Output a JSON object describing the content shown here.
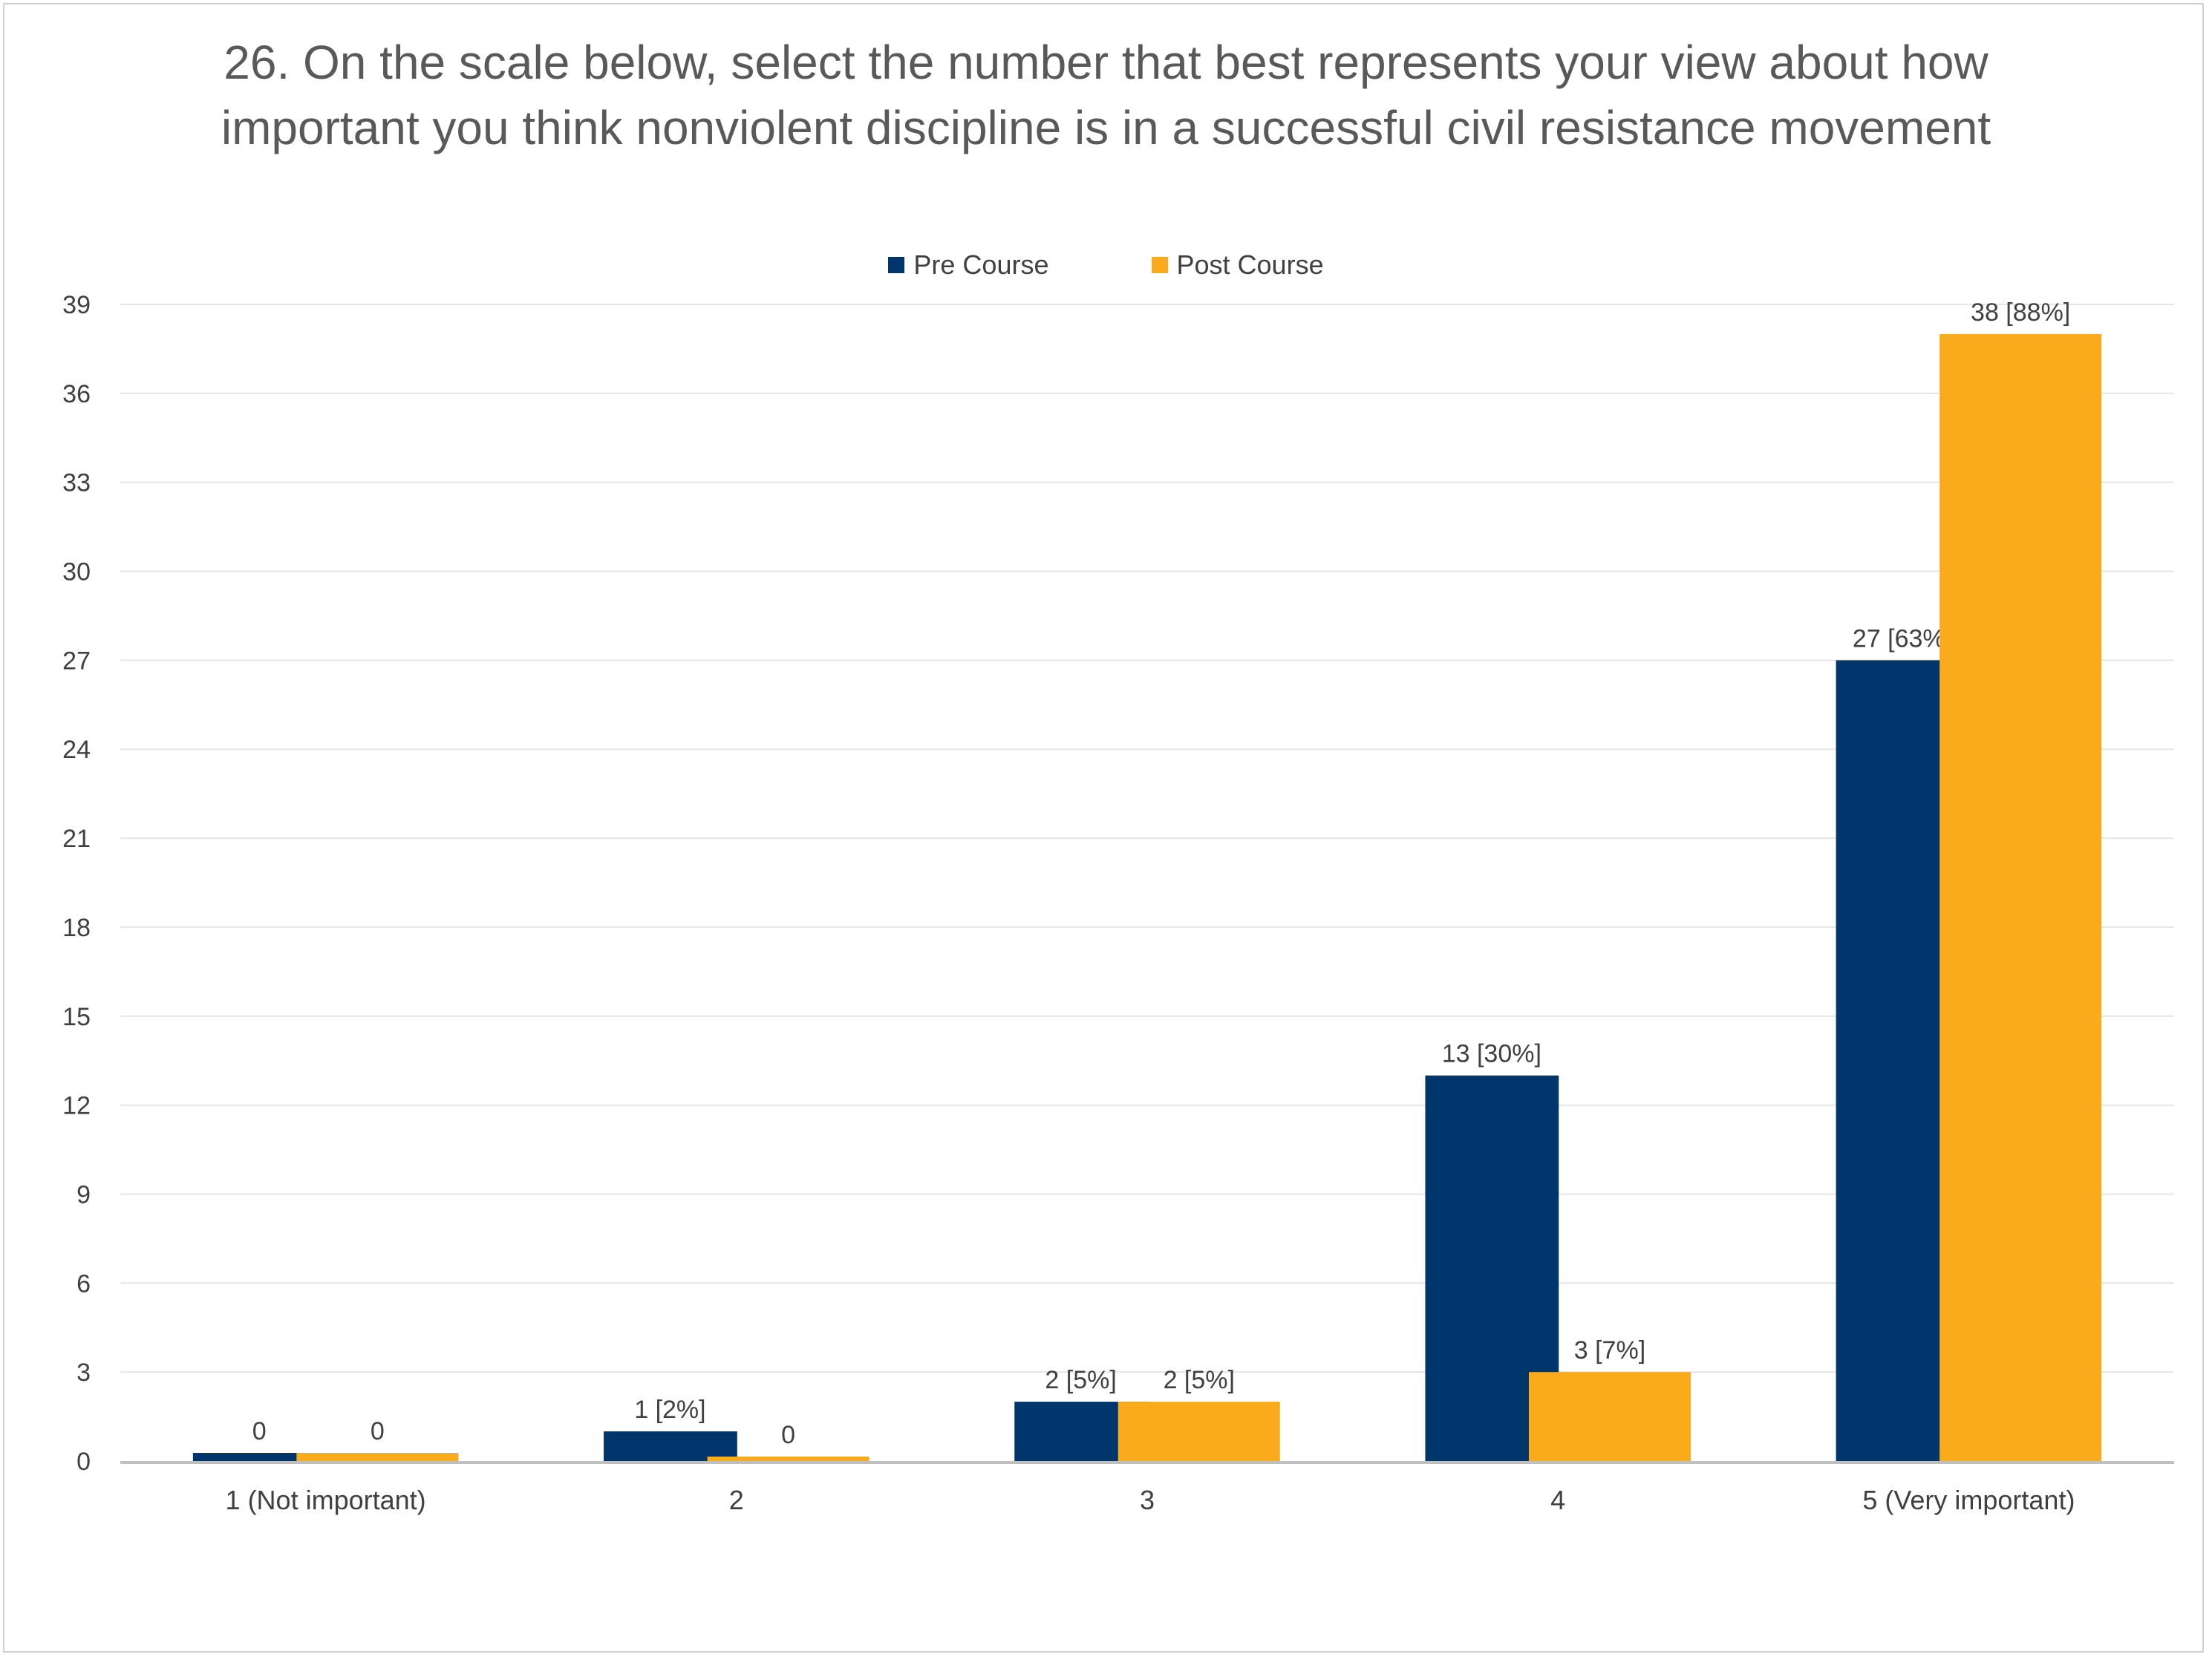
{
  "colors": {
    "pre": "#00366C",
    "post": "#F9AB1C",
    "grid": "#E5E5E5",
    "axis": "#C0C0C0",
    "text": "#404040",
    "title": "#595959"
  },
  "chart_data": {
    "type": "bar",
    "title": "26. On the scale below, select the number that best represents your view about how important you think nonviolent discipline is in a successful civil resistance movement",
    "categories": [
      "1 (Not important)",
      "2",
      "3",
      "4",
      "5 (Very important)"
    ],
    "series": [
      {
        "name": "Pre Course",
        "values": [
          0,
          1,
          2,
          13,
          27
        ],
        "labels": [
          "0",
          "1 [2%]",
          "2 [5%]",
          "13 [30%]",
          "27 [63%]"
        ]
      },
      {
        "name": "Post Course",
        "values": [
          0,
          0,
          2,
          3,
          38
        ],
        "labels": [
          "0",
          "0",
          "2 [5%]",
          "3 [7%]",
          "38 [88%]"
        ]
      }
    ],
    "yticks": [
      0,
      3,
      6,
      9,
      12,
      15,
      18,
      21,
      24,
      27,
      30,
      33,
      36,
      39
    ],
    "ylim": [
      0,
      39
    ],
    "xlabel": "",
    "ylabel": "",
    "grid": true,
    "legend_position": "top-center"
  }
}
